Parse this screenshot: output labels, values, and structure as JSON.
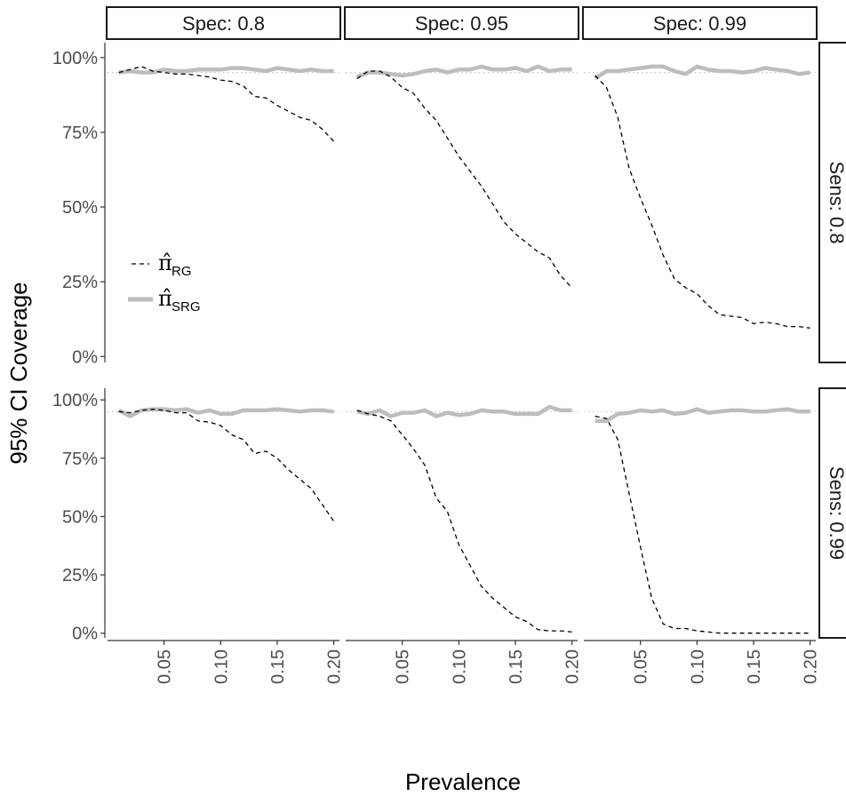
{
  "chart_data": {
    "type": "line",
    "ylabel": "95% CI Coverage",
    "xlabel": "Prevalence",
    "x": [
      0.01,
      0.02,
      0.03,
      0.04,
      0.05,
      0.06,
      0.07,
      0.08,
      0.09,
      0.1,
      0.11,
      0.12,
      0.13,
      0.14,
      0.15,
      0.16,
      0.17,
      0.18,
      0.19,
      0.2
    ],
    "xlim": [
      0.0,
      0.205
    ],
    "ylim": [
      -0.02,
      1.05
    ],
    "x_ticks": [
      0.05,
      0.1,
      0.15,
      0.2
    ],
    "x_tick_labels": [
      "0.05",
      "0.10",
      "0.15",
      "0.20"
    ],
    "y_ticks": [
      0,
      0.25,
      0.5,
      0.75,
      1.0
    ],
    "y_tick_labels": [
      "0%",
      "25%",
      "50%",
      "75%",
      "100%"
    ],
    "reference_line": 0.95,
    "col_strips": [
      "Spec: 0.8",
      "Spec: 0.95",
      "Spec: 0.99"
    ],
    "row_strips": [
      "Sens: 0.8",
      "Sens: 0.99"
    ],
    "legend": {
      "position": "inside top-left panel",
      "entries": [
        {
          "symbol": "π̂",
          "subscript": "RG",
          "style": "dashed",
          "color": "#000000"
        },
        {
          "symbol": "π̂",
          "subscript": "SRG",
          "style": "solid",
          "color": "#bdbdbd"
        }
      ]
    },
    "panels": [
      {
        "row": 0,
        "col": 0,
        "RG": [
          0.95,
          0.96,
          0.97,
          0.955,
          0.95,
          0.945,
          0.945,
          0.94,
          0.935,
          0.925,
          0.92,
          0.905,
          0.87,
          0.865,
          0.84,
          0.82,
          0.8,
          0.79,
          0.76,
          0.72
        ],
        "SRG": [
          0.95,
          0.955,
          0.95,
          0.95,
          0.96,
          0.955,
          0.955,
          0.96,
          0.96,
          0.96,
          0.965,
          0.965,
          0.96,
          0.955,
          0.965,
          0.96,
          0.955,
          0.96,
          0.955,
          0.955
        ]
      },
      {
        "row": 0,
        "col": 1,
        "RG": [
          0.93,
          0.955,
          0.955,
          0.935,
          0.9,
          0.88,
          0.83,
          0.79,
          0.73,
          0.67,
          0.62,
          0.57,
          0.51,
          0.45,
          0.41,
          0.38,
          0.35,
          0.33,
          0.27,
          0.23
        ],
        "SRG": [
          0.935,
          0.95,
          0.95,
          0.945,
          0.94,
          0.945,
          0.955,
          0.96,
          0.95,
          0.96,
          0.96,
          0.97,
          0.96,
          0.96,
          0.965,
          0.955,
          0.97,
          0.955,
          0.96,
          0.96
        ]
      },
      {
        "row": 0,
        "col": 2,
        "RG": [
          0.94,
          0.9,
          0.8,
          0.63,
          0.53,
          0.44,
          0.34,
          0.26,
          0.23,
          0.21,
          0.17,
          0.14,
          0.135,
          0.13,
          0.11,
          0.115,
          0.11,
          0.1,
          0.1,
          0.095
        ],
        "SRG": [
          0.93,
          0.955,
          0.955,
          0.96,
          0.965,
          0.97,
          0.97,
          0.955,
          0.945,
          0.97,
          0.96,
          0.955,
          0.955,
          0.95,
          0.955,
          0.965,
          0.96,
          0.955,
          0.945,
          0.95
        ]
      },
      {
        "row": 1,
        "col": 0,
        "RG": [
          0.95,
          0.945,
          0.955,
          0.96,
          0.955,
          0.945,
          0.945,
          0.91,
          0.905,
          0.89,
          0.85,
          0.83,
          0.77,
          0.78,
          0.75,
          0.7,
          0.66,
          0.62,
          0.55,
          0.48
        ],
        "SRG": [
          0.955,
          0.93,
          0.955,
          0.96,
          0.96,
          0.955,
          0.96,
          0.945,
          0.955,
          0.94,
          0.94,
          0.955,
          0.955,
          0.955,
          0.96,
          0.955,
          0.95,
          0.955,
          0.955,
          0.95
        ]
      },
      {
        "row": 1,
        "col": 1,
        "RG": [
          0.955,
          0.94,
          0.93,
          0.91,
          0.85,
          0.79,
          0.72,
          0.58,
          0.52,
          0.38,
          0.29,
          0.2,
          0.15,
          0.11,
          0.07,
          0.05,
          0.015,
          0.01,
          0.01,
          0.005
        ],
        "SRG": [
          0.95,
          0.94,
          0.955,
          0.93,
          0.945,
          0.945,
          0.955,
          0.93,
          0.945,
          0.935,
          0.94,
          0.955,
          0.95,
          0.95,
          0.94,
          0.94,
          0.94,
          0.97,
          0.955,
          0.955
        ]
      },
      {
        "row": 1,
        "col": 2,
        "RG": [
          0.93,
          0.92,
          0.83,
          0.6,
          0.37,
          0.15,
          0.04,
          0.02,
          0.02,
          0.01,
          0.005,
          0.0,
          0.0,
          0.0,
          0.0,
          0.0,
          0.0,
          0.0,
          0.0,
          0.0
        ],
        "SRG": [
          0.91,
          0.91,
          0.94,
          0.945,
          0.955,
          0.95,
          0.955,
          0.94,
          0.945,
          0.96,
          0.945,
          0.95,
          0.955,
          0.955,
          0.95,
          0.95,
          0.955,
          0.96,
          0.95,
          0.95
        ]
      }
    ]
  }
}
